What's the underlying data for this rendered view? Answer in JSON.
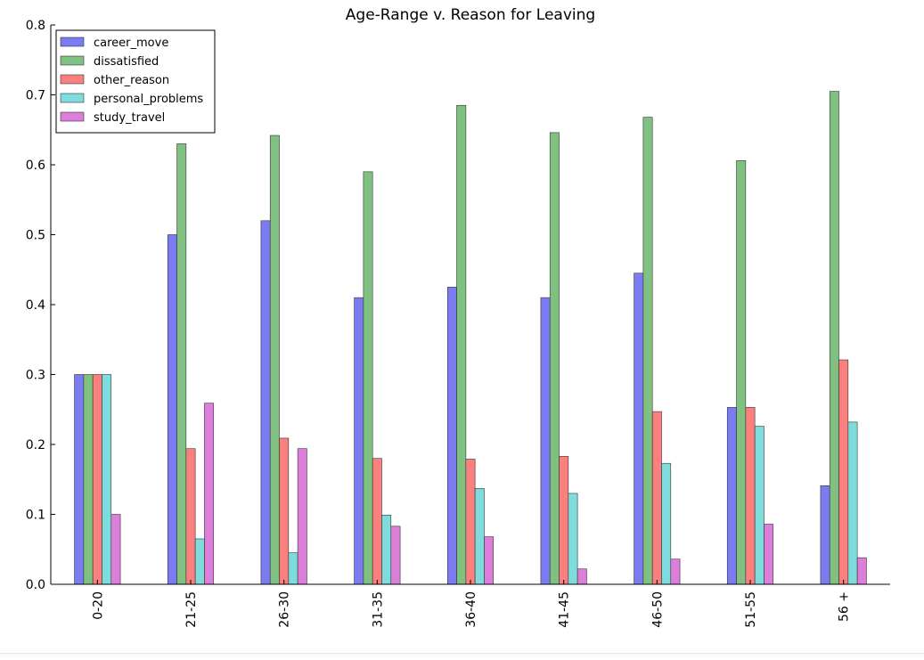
{
  "chart_data": {
    "type": "bar",
    "title": "Age-Range v. Reason for Leaving",
    "xlabel": "",
    "ylabel": "",
    "categories": [
      "0-20",
      "21-25",
      "26-30",
      "31-35",
      "36-40",
      "41-45",
      "46-50",
      "51-55",
      "56 +"
    ],
    "ylim": [
      0,
      0.8
    ],
    "yticks": [
      "0.0",
      "0.1",
      "0.2",
      "0.3",
      "0.4",
      "0.5",
      "0.6",
      "0.7",
      "0.8"
    ],
    "grid": false,
    "legend_position": "top-left",
    "series": [
      {
        "name": "career_move",
        "color": "#7b7bf2",
        "values": [
          0.3,
          0.5,
          0.52,
          0.41,
          0.425,
          0.41,
          0.445,
          0.253,
          0.141
        ]
      },
      {
        "name": "dissatisfied",
        "color": "#80c080",
        "values": [
          0.3,
          0.63,
          0.642,
          0.59,
          0.685,
          0.646,
          0.668,
          0.606,
          0.705
        ]
      },
      {
        "name": "other_reason",
        "color": "#fa7f7f",
        "values": [
          0.3,
          0.194,
          0.209,
          0.18,
          0.179,
          0.183,
          0.247,
          0.253,
          0.321
        ]
      },
      {
        "name": "personal_problems",
        "color": "#7fdcdc",
        "values": [
          0.3,
          0.065,
          0.045,
          0.099,
          0.137,
          0.13,
          0.173,
          0.226,
          0.232
        ]
      },
      {
        "name": "study_travel",
        "color": "#db7fdb",
        "values": [
          0.1,
          0.259,
          0.194,
          0.083,
          0.068,
          0.022,
          0.036,
          0.086,
          0.038
        ]
      }
    ]
  }
}
